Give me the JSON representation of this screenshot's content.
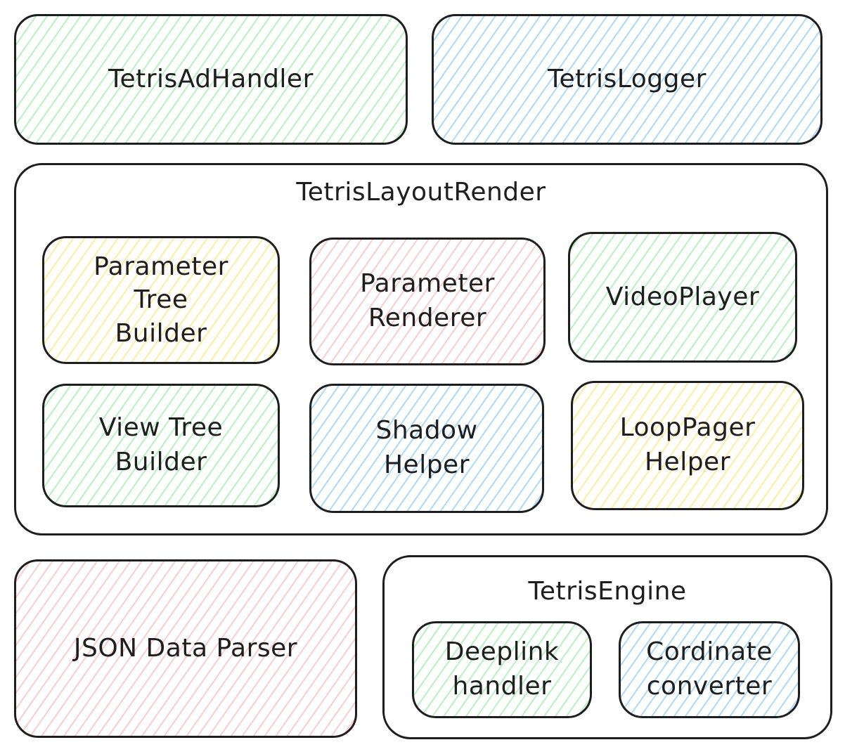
{
  "top": {
    "ad_handler": "TetrisAdHandler",
    "logger": "TetrisLogger"
  },
  "layout_render": {
    "title": "TetrisLayoutRender",
    "parameter_tree_builder": "Parameter\nTree\nBuilder",
    "parameter_renderer": "Parameter\nRenderer",
    "video_player": "VideoPlayer",
    "view_tree_builder": "View Tree\nBuilder",
    "shadow_helper": "Shadow\nHelper",
    "loop_pager_helper": "LoopPager\nHelper"
  },
  "bottom": {
    "json_parser": "JSON Data Parser",
    "engine": {
      "title": "TetrisEngine",
      "deeplink_handler": "Deeplink\nhandler",
      "coordinate_converter": "Cordinate\nconverter"
    }
  },
  "colors": {
    "stroke": "#1e1e1e",
    "green": "#b2f2bb",
    "blue": "#a5d8ff",
    "yellow": "#ffec99",
    "red": "#ffc9c9"
  }
}
